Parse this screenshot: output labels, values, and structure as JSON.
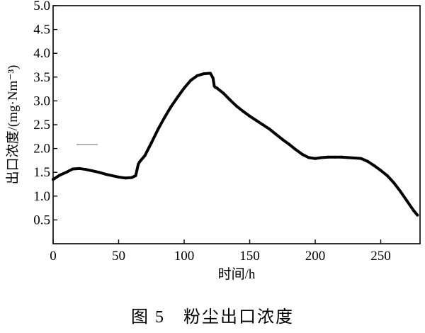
{
  "chart_data": {
    "type": "line",
    "title": "",
    "xlabel": "时间/h",
    "ylabel": "出口浓度/(mg·Nm⁻³)",
    "xlim": [
      0,
      280
    ],
    "ylim": [
      0,
      5.0
    ],
    "x_ticks": [
      0,
      50,
      100,
      150,
      200,
      250
    ],
    "x_tick_labels": [
      "0",
      "50",
      "100",
      "150",
      "200",
      "250"
    ],
    "y_ticks": [
      0.5,
      1.0,
      1.5,
      2.0,
      2.5,
      3.0,
      3.5,
      4.0,
      4.5,
      5.0
    ],
    "y_tick_labels": [
      "0.5",
      "1.0",
      "1.5",
      "2.0",
      "2.5",
      "3.0",
      "3.5",
      "4.0",
      "4.5",
      "5.0"
    ],
    "grid": false,
    "legend": "none",
    "series": [
      {
        "color": "#000000",
        "x": [
          0,
          5,
          10,
          15,
          20,
          25,
          30,
          35,
          40,
          45,
          50,
          55,
          60,
          63,
          64,
          65,
          66,
          70,
          75,
          80,
          85,
          90,
          95,
          100,
          105,
          110,
          115,
          120,
          122,
          123,
          124,
          125,
          130,
          135,
          140,
          145,
          150,
          155,
          160,
          165,
          170,
          175,
          180,
          185,
          190,
          195,
          200,
          205,
          210,
          215,
          220,
          225,
          230,
          235,
          240,
          245,
          250,
          255,
          260,
          265,
          270,
          275,
          278
        ],
        "y": [
          1.35,
          1.44,
          1.5,
          1.57,
          1.58,
          1.56,
          1.53,
          1.5,
          1.46,
          1.43,
          1.4,
          1.38,
          1.39,
          1.43,
          1.55,
          1.67,
          1.72,
          1.85,
          2.12,
          2.4,
          2.65,
          2.88,
          3.08,
          3.27,
          3.43,
          3.53,
          3.57,
          3.58,
          3.48,
          3.31,
          3.28,
          3.27,
          3.16,
          3.02,
          2.89,
          2.78,
          2.68,
          2.59,
          2.5,
          2.41,
          2.3,
          2.19,
          2.09,
          1.98,
          1.88,
          1.81,
          1.79,
          1.81,
          1.82,
          1.82,
          1.82,
          1.81,
          1.8,
          1.79,
          1.73,
          1.64,
          1.54,
          1.43,
          1.28,
          1.1,
          0.9,
          0.7,
          0.6
        ]
      }
    ]
  },
  "legend_marker": {
    "color": "#888888"
  },
  "caption": "图 5　粉尘出口浓度"
}
